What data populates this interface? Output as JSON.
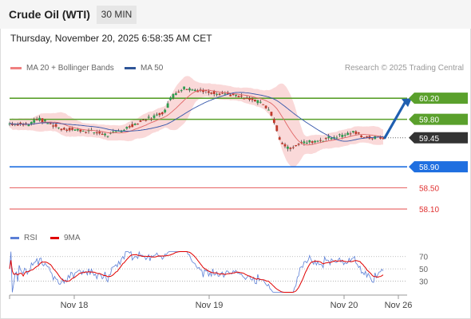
{
  "header": {
    "title": "Crude Oil (WTI)",
    "timeframe": "30 MIN"
  },
  "datetime": "Thursday, November 20, 2025 6:58:35 AM CET",
  "legend": {
    "bollinger": {
      "label": "MA 20 + Bollinger Bands",
      "color": "#f08080"
    },
    "ma50": {
      "label": "MA 50",
      "color": "#2f5597"
    }
  },
  "credit": "Research © 2025 Trading Central",
  "rsi_legend": {
    "rsi": {
      "label": "RSI",
      "color": "#5b7fd6"
    },
    "ma9": {
      "label": "9MA",
      "color": "#e00000"
    }
  },
  "chart_data": {
    "type": "candlestick",
    "price_range": [
      57.95,
      60.55
    ],
    "x_labels": [
      "Nov 18",
      "Nov 19",
      "Nov 20",
      "Nov 26"
    ],
    "levels": [
      {
        "value": "60.20",
        "kind": "resistance",
        "color": "#5aa02c"
      },
      {
        "value": "59.80",
        "kind": "resistance",
        "color": "#5aa02c"
      },
      {
        "value": "59.45",
        "kind": "last",
        "color": "#333333"
      },
      {
        "value": "58.90",
        "kind": "support",
        "color": "#1f6fe0"
      },
      {
        "value": "58.50",
        "kind": "minor",
        "color": "#e03030"
      },
      {
        "value": "58.10",
        "kind": "minor",
        "color": "#e03030"
      }
    ],
    "forecast": {
      "from": 59.45,
      "to": 60.2,
      "color": "#1f5fb0"
    },
    "rsi": {
      "levels": [
        "70",
        "50",
        "30"
      ],
      "range": [
        10,
        80
      ]
    },
    "colors": {
      "up": "#2e9e4f",
      "down": "#c0392b",
      "band": "#f9d2d2",
      "ma20": "#e06666",
      "ma50": "#3355aa"
    }
  }
}
